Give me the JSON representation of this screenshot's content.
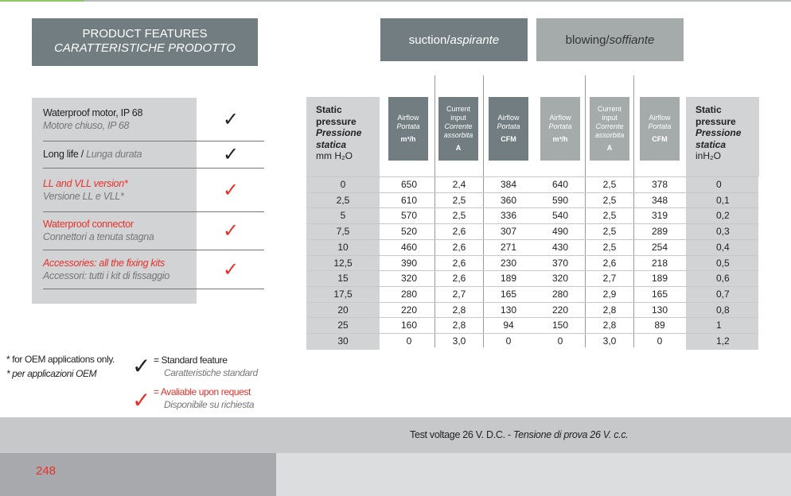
{
  "header": {
    "title_en": "PRODUCT FEATURES",
    "title_it": "CARATTERISTICHE PRODOTTO"
  },
  "tabs": [
    {
      "en": "suction",
      "sep": " / ",
      "it": "aspirante"
    },
    {
      "en": "blowing",
      "sep": " / ",
      "it": "soffiante"
    }
  ],
  "features": [
    {
      "en": "Waterproof motor, IP 68",
      "it": "Motore chiuso, IP 68",
      "check": "standard"
    },
    {
      "en": "Long life",
      "sep": " / ",
      "it": "Lunga durata",
      "check": "standard"
    },
    {
      "en": "LL and VLL version*",
      "it": "Versione LL e VLL*",
      "check": "on-request"
    },
    {
      "en": "Waterproof connector",
      "it": "Connettori a tenuta stagna",
      "check": "on-request"
    },
    {
      "en": "Accessories: all the fixing kits",
      "it": "Accessori: tutti i kit di fissaggio",
      "check": "on-request"
    }
  ],
  "check_glyph": "✓",
  "colors": {
    "standard": "#222222",
    "on_request": "#e8302a",
    "header_dark": "#717d80",
    "header_light": "#a5aaab"
  },
  "legend": {
    "note_en": "* for OEM applications only.",
    "note_it": "* per applicazioni OEM",
    "standard_en": "= Standard feature",
    "standard_it": "Caratteristiche standard",
    "request_en": "= Avaliable upon request",
    "request_it": "Disponibile su richiesta"
  },
  "table": {
    "left_header": [
      "Static",
      "pressure",
      "Pressione",
      "statica",
      "mm H₂O"
    ],
    "right_header": [
      "Static",
      "pressure",
      "Pressione",
      "statica",
      "inH₂O"
    ],
    "columns": [
      {
        "l1": "Airflow",
        "l2": "Portata",
        "unit": "m³/h"
      },
      {
        "l0": "Current",
        "l1": "input",
        "l2": "Corrente assorbita",
        "unit": "A"
      },
      {
        "l1": "Airflow",
        "l2": "Portata",
        "unit": "CFM"
      },
      {
        "l1": "Airflow",
        "l2": "Portata",
        "unit": "m³/h"
      },
      {
        "l0": "Current",
        "l1": "input",
        "l2": "Corrente assorbita",
        "unit": "A"
      },
      {
        "l1": "Airflow",
        "l2": "Portata",
        "unit": "CFM"
      }
    ],
    "rows": [
      [
        "0",
        "650",
        "2,4",
        "384",
        "640",
        "2,5",
        "378",
        "0"
      ],
      [
        "2,5",
        "610",
        "2,5",
        "360",
        "590",
        "2,5",
        "348",
        "0,1"
      ],
      [
        "5",
        "570",
        "2,5",
        "336",
        "540",
        "2,5",
        "319",
        "0,2"
      ],
      [
        "7,5",
        "520",
        "2,6",
        "307",
        "490",
        "2,5",
        "289",
        "0,3"
      ],
      [
        "10",
        "460",
        "2,6",
        "271",
        "430",
        "2,5",
        "254",
        "0,4"
      ],
      [
        "12,5",
        "390",
        "2,6",
        "230",
        "370",
        "2,6",
        "218",
        "0,5"
      ],
      [
        "15",
        "320",
        "2,6",
        "189",
        "320",
        "2,7",
        "189",
        "0,6"
      ],
      [
        "17,5",
        "280",
        "2,7",
        "165",
        "280",
        "2,9",
        "165",
        "0,7"
      ],
      [
        "20",
        "220",
        "2,8",
        "130",
        "220",
        "2,8",
        "130",
        "0,8"
      ],
      [
        "25",
        "160",
        "2,8",
        "94",
        "150",
        "2,8",
        "89",
        "1"
      ],
      [
        "30",
        "0",
        "3,0",
        "0",
        "0",
        "3,0",
        "0",
        "1,2"
      ]
    ]
  },
  "footer": {
    "voltage_en": "Test voltage 26 V. D.C. - ",
    "voltage_it": "Tensione di prova 26 V. c.c.",
    "page": "248"
  }
}
